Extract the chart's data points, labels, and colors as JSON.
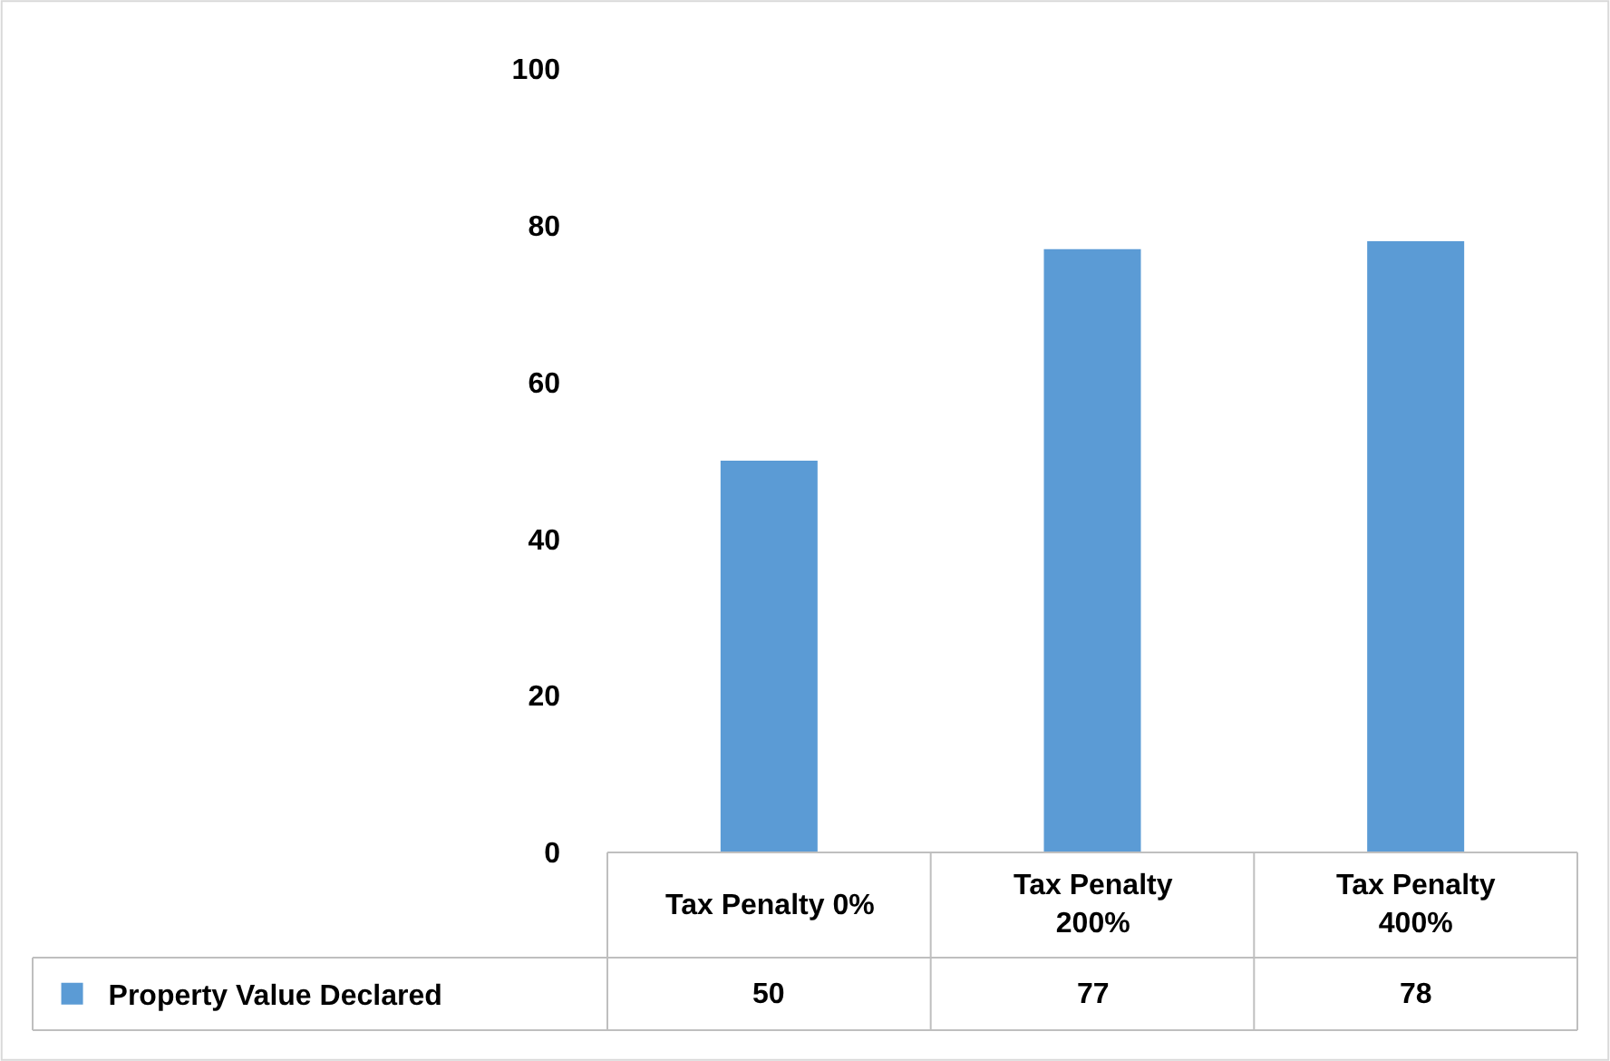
{
  "chart_data": {
    "type": "bar",
    "categories": [
      "Tax Penalty 0%",
      "Tax Penalty 200%",
      "Tax Penalty 400%"
    ],
    "series": [
      {
        "name": "Property Value Declared",
        "color": "#5b9bd5",
        "values": [
          50,
          77,
          78
        ]
      }
    ],
    "ylim": [
      0,
      100
    ],
    "yticks": [
      0,
      20,
      40,
      60,
      80,
      100
    ],
    "grid": false,
    "legend": "bottom",
    "data_labels": true
  }
}
